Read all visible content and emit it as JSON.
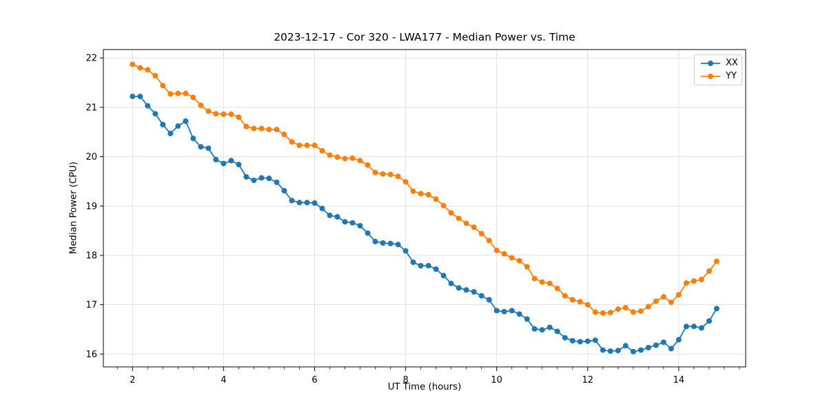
{
  "figure": {
    "background": "#ffffff"
  },
  "chart_data": {
    "type": "line",
    "title": "2023-12-17 - Cor 320 - LWA177 - Median Power vs. Time",
    "xlabel": "UT Time (hours)",
    "ylabel": "Median Power (CPU)",
    "xlim": [
      1.36,
      15.47
    ],
    "ylim": [
      15.74,
      22.17
    ],
    "x_ticks": [
      2,
      4,
      6,
      8,
      10,
      12,
      14
    ],
    "y_ticks": [
      16,
      17,
      18,
      19,
      20,
      21,
      22
    ],
    "x_minor_step": 0.3333,
    "grid": true,
    "grid_color": "#e0e0e0",
    "spine_color": "#000000",
    "legend": {
      "position": "upper right",
      "entries": [
        "XX",
        "YY"
      ]
    },
    "x": [
      2.0,
      2.167,
      2.333,
      2.5,
      2.667,
      2.833,
      3.0,
      3.167,
      3.333,
      3.5,
      3.667,
      3.833,
      4.0,
      4.167,
      4.333,
      4.5,
      4.667,
      4.833,
      5.0,
      5.167,
      5.333,
      5.5,
      5.667,
      5.833,
      6.0,
      6.167,
      6.333,
      6.5,
      6.667,
      6.833,
      7.0,
      7.167,
      7.333,
      7.5,
      7.667,
      7.833,
      8.0,
      8.167,
      8.333,
      8.5,
      8.667,
      8.833,
      9.0,
      9.167,
      9.333,
      9.5,
      9.667,
      9.833,
      10.0,
      10.167,
      10.333,
      10.5,
      10.667,
      10.833,
      11.0,
      11.167,
      11.333,
      11.5,
      11.667,
      11.833,
      12.0,
      12.167,
      12.333,
      12.5,
      12.667,
      12.833,
      13.0,
      13.167,
      13.333,
      13.5,
      13.667,
      13.833,
      14.0,
      14.167,
      14.333,
      14.5,
      14.667,
      14.833
    ],
    "series": [
      {
        "name": "XX",
        "color": "#1f77b4",
        "values": [
          21.22,
          21.22,
          21.03,
          20.87,
          20.65,
          20.47,
          20.62,
          20.72,
          20.37,
          20.2,
          20.17,
          19.94,
          19.86,
          19.92,
          19.84,
          19.59,
          19.52,
          19.57,
          19.56,
          19.48,
          19.31,
          19.11,
          19.07,
          19.07,
          19.06,
          18.95,
          18.81,
          18.78,
          18.68,
          18.66,
          18.6,
          18.45,
          18.28,
          18.25,
          18.24,
          18.22,
          18.09,
          17.86,
          17.79,
          17.79,
          17.72,
          17.59,
          17.43,
          17.34,
          17.3,
          17.26,
          17.18,
          17.1,
          16.88,
          16.86,
          16.88,
          16.81,
          16.71,
          16.51,
          16.49,
          16.54,
          16.46,
          16.33,
          16.27,
          16.25,
          16.26,
          16.28,
          16.08,
          16.06,
          16.07,
          16.17,
          16.05,
          16.08,
          16.13,
          16.18,
          16.24,
          16.11,
          16.29,
          16.56,
          16.56,
          16.53,
          16.67,
          16.92
        ]
      },
      {
        "name": "YY",
        "color": "#ff7f0e",
        "values": [
          21.87,
          21.8,
          21.76,
          21.64,
          21.44,
          21.27,
          21.28,
          21.28,
          21.2,
          21.04,
          20.92,
          20.87,
          20.86,
          20.86,
          20.8,
          20.61,
          20.57,
          20.57,
          20.55,
          20.55,
          20.45,
          20.3,
          20.23,
          20.23,
          20.23,
          20.12,
          20.03,
          19.99,
          19.96,
          19.97,
          19.92,
          19.83,
          19.68,
          19.65,
          19.64,
          19.6,
          19.49,
          19.3,
          19.25,
          19.23,
          19.14,
          19.01,
          18.86,
          18.75,
          18.65,
          18.57,
          18.44,
          18.3,
          18.1,
          18.03,
          17.95,
          17.89,
          17.77,
          17.53,
          17.46,
          17.43,
          17.33,
          17.18,
          17.1,
          17.06,
          17.0,
          16.85,
          16.83,
          16.84,
          16.91,
          16.94,
          16.85,
          16.87,
          16.96,
          17.07,
          17.16,
          17.05,
          17.2,
          17.44,
          17.48,
          17.51,
          17.68,
          17.88
        ]
      }
    ]
  }
}
